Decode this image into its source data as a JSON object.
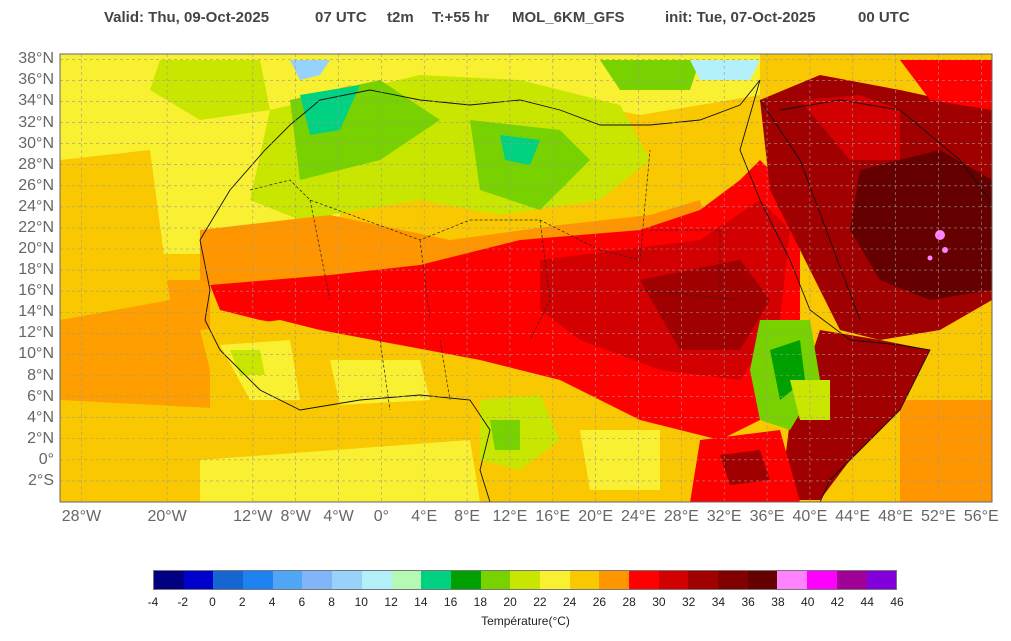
{
  "header": {
    "valid": "Valid: Thu, 09-Oct-2025",
    "hour": "07 UTC",
    "variable": "t2m",
    "lead": "T:+55 hr",
    "model": "MOL_6KM_GFS",
    "init": "init: Tue, 07-Oct-2025",
    "init_hour": "00 UTC"
  },
  "map": {
    "extent_lon": [
      -30,
      57
    ],
    "extent_lat": [
      -4,
      38.5
    ],
    "lat_labels": [
      "38°N",
      "36°N",
      "34°N",
      "32°N",
      "30°N",
      "28°N",
      "26°N",
      "24°N",
      "22°N",
      "20°N",
      "18°N",
      "16°N",
      "14°N",
      "12°N",
      "10°N",
      "8°N",
      "6°N",
      "4°N",
      "2°N",
      "0°",
      "2°S"
    ],
    "lon_labels": [
      "28°W",
      "20°W",
      "12°W",
      "8°W",
      "4°W",
      "0°",
      "4°E",
      "8°E",
      "12°E",
      "16°E",
      "20°E",
      "24°E",
      "28°E",
      "32°E",
      "36°E",
      "40°E",
      "44°E",
      "48°E",
      "52°E",
      "56°E"
    ],
    "gridlines": true
  },
  "colorbar": {
    "title": "Température(°C)",
    "ticks": [
      "-4",
      "-2",
      "0",
      "2",
      "4",
      "6",
      "8",
      "10",
      "12",
      "14",
      "16",
      "18",
      "20",
      "22",
      "24",
      "26",
      "28",
      "30",
      "32",
      "34",
      "36",
      "38",
      "40",
      "42",
      "44",
      "46"
    ],
    "colors": [
      "#000080",
      "#0000cd",
      "#1464d2",
      "#1e82f0",
      "#50a5f5",
      "#82b4fa",
      "#96d2fa",
      "#b4f0fa",
      "#b4fab4",
      "#00d282",
      "#00a000",
      "#78d200",
      "#c8e600",
      "#faf032",
      "#fac800",
      "#ff9600",
      "#ff0000",
      "#d20000",
      "#a00000",
      "#800000",
      "#640000",
      "#ff82ff",
      "#ff00ff",
      "#a00096",
      "#8200dc"
    ]
  }
}
